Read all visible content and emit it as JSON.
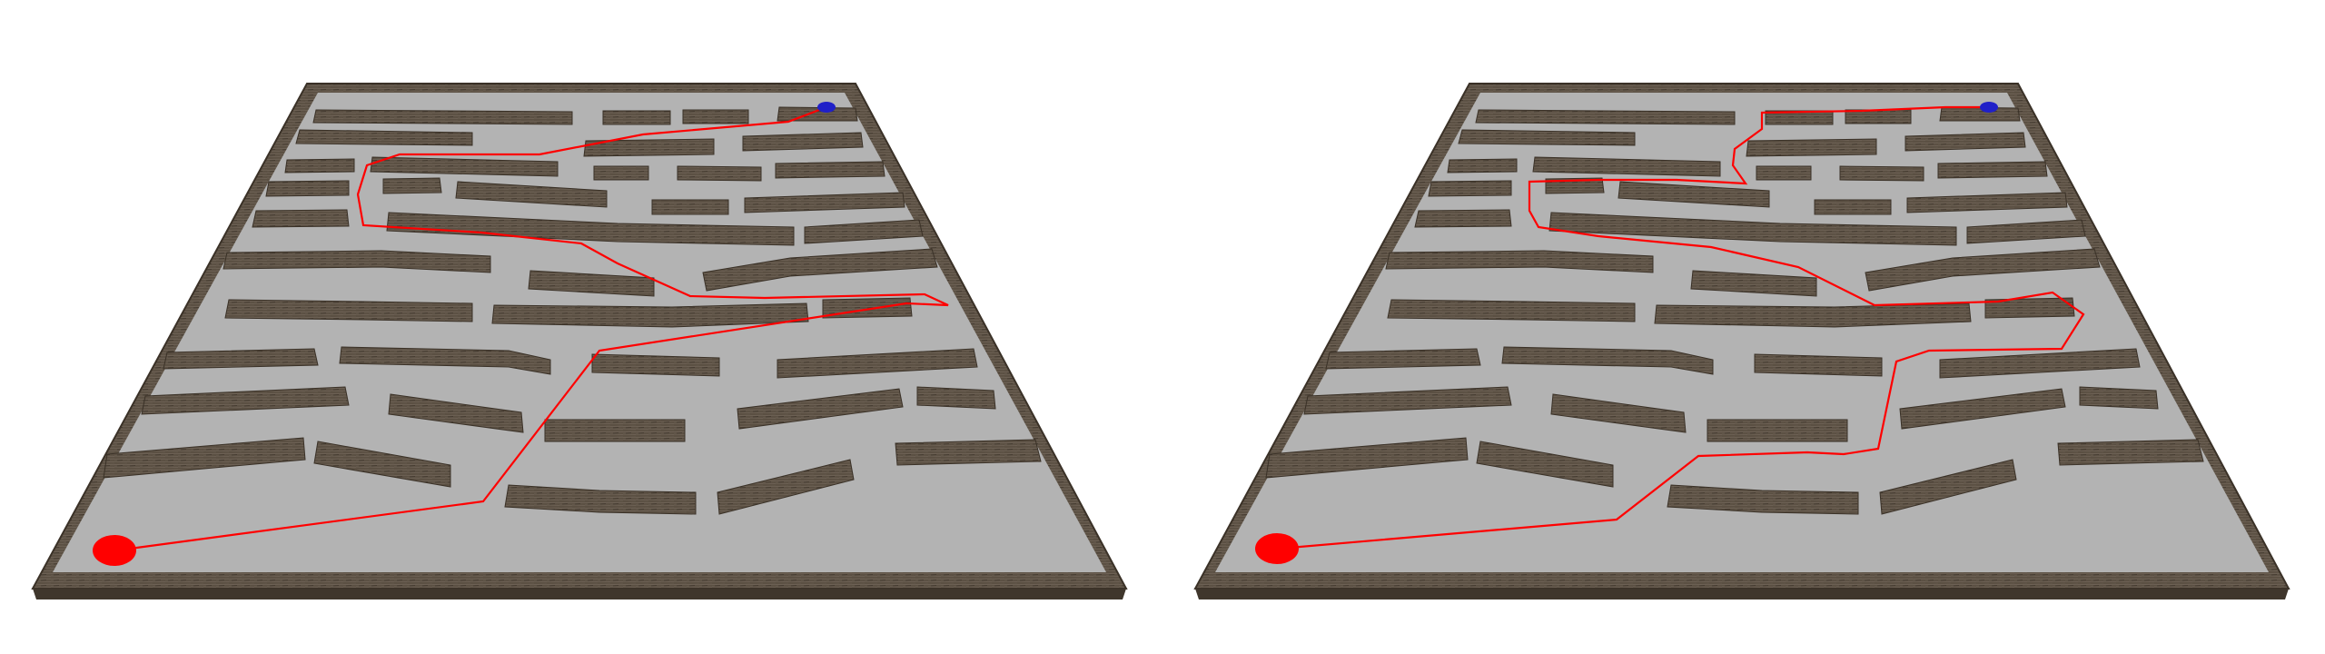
{
  "scene": {
    "kind": "maze-path-comparison",
    "panels": [
      {
        "id": "left",
        "start_marker": {
          "color": "#ff0000"
        },
        "goal_marker": {
          "color": "#2020c8"
        },
        "path": {
          "color": "#ff0000"
        }
      },
      {
        "id": "right",
        "start_marker": {
          "color": "#ff0000"
        },
        "goal_marker": {
          "color": "#2020c8"
        },
        "path": {
          "color": "#ff0000"
        }
      }
    ],
    "colors": {
      "background": "#ffffff",
      "floor": "#b3b3b3",
      "wall_top": "#5b5043",
      "wall_side": "#3f362c",
      "border": "#4a4035"
    }
  }
}
